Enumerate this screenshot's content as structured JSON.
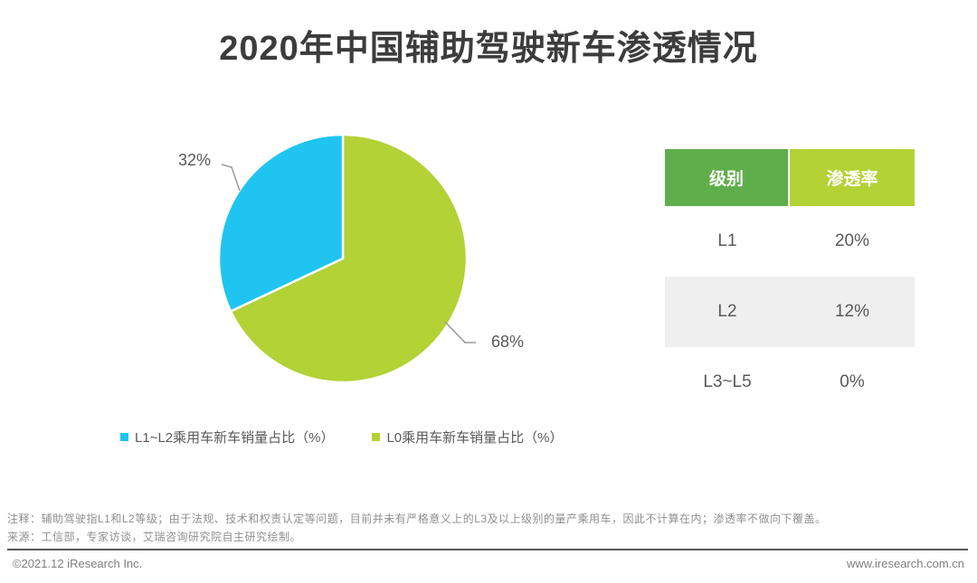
{
  "title": {
    "text": "2020年中国辅助驾驶新车渗透情况",
    "color": "#3c3c3c"
  },
  "chart_data": {
    "type": "pie",
    "title": "2020年中国辅助驾驶新车渗透情况",
    "unit": "%",
    "start_angle_deg": -90,
    "direction": "clockwise",
    "legend_position": "bottom",
    "slices": [
      {
        "name": "L0乘用车新车销量占比（%）",
        "value": 68,
        "label": "68%",
        "color": "#B2D235"
      },
      {
        "name": "L1~L2乘用车新车销量占比（%）",
        "value": 32,
        "label": "32%",
        "color": "#1FC5F0"
      }
    ]
  },
  "legend": {
    "items": [
      {
        "label": "L1~L2乘用车新车销量占比（%）",
        "color": "#1FC5F0"
      },
      {
        "label": "L0乘用车新车销量占比（%）",
        "color": "#B2D235"
      }
    ]
  },
  "table": {
    "headers": [
      {
        "label": "级别",
        "bg": "#60AE4B"
      },
      {
        "label": "渗透率",
        "bg": "#B2D235"
      }
    ],
    "rows": [
      {
        "level": "L1",
        "rate": "20%",
        "bg": "#FFFFFF"
      },
      {
        "level": "L2",
        "rate": "12%",
        "bg": "#EFEFEF"
      },
      {
        "level": "L3~L5",
        "rate": "0%",
        "bg": "#FFFFFF"
      }
    ]
  },
  "notes": {
    "note": "注释：辅助驾驶指L1和L2等级；由于法规、技术和权责认定等问题，目前并未有严格意义上的L3及以上级别的量产乘用车，因此不计算在内；渗透率不做向下覆盖。",
    "source": "来源：工信部，专家访谈，艾瑞咨询研究院自主研究绘制。"
  },
  "footer": {
    "copyright": "©2021.12 iResearch Inc.",
    "website": "www.iresearch.com.cn"
  }
}
